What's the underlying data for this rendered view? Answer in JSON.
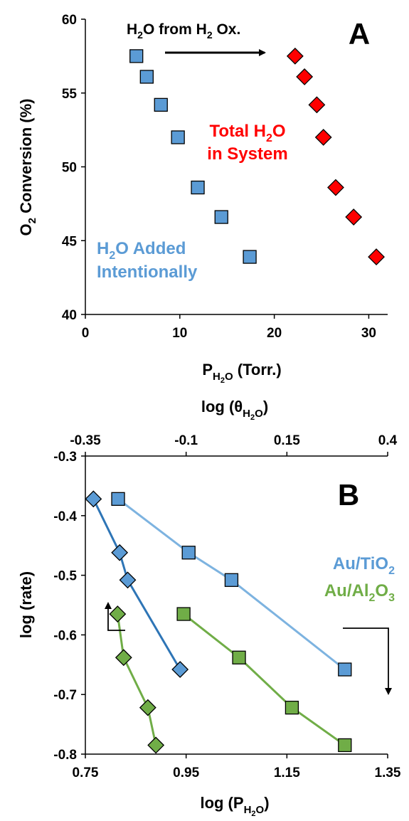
{
  "chart_data": [
    {
      "type": "scatter",
      "panel_label": "A",
      "ylabel_main": "O",
      "ylabel_sub": "2",
      "ylabel_rest": " Conversion (%)",
      "xlabel_main": "P",
      "xlabel_sub": "H",
      "xlabel_subsub": "2",
      "xlabel_subrest": "O",
      "xlabel_rest": " (Torr.)",
      "xlim": [
        0,
        32
      ],
      "ylim": [
        40,
        60
      ],
      "x_ticks": [
        0,
        10,
        20,
        30
      ],
      "y_ticks": [
        40,
        45,
        50,
        55,
        60
      ],
      "annotations": {
        "arrow_label": [
          "H",
          "2",
          "O from H",
          "2",
          " Ox."
        ],
        "red_label": [
          "Total H",
          "2",
          "O",
          "in System"
        ],
        "blue_label": [
          "H",
          "2",
          "O Added",
          "Intentionally"
        ]
      },
      "series": [
        {
          "color": "#5b9bd5",
          "marker": "square",
          "x": [
            5.4,
            6.5,
            8.0,
            9.8,
            11.9,
            14.4,
            17.4
          ],
          "y": [
            57.5,
            56.1,
            54.2,
            52.0,
            48.6,
            46.6,
            43.9
          ]
        },
        {
          "color": "#ff0000",
          "marker": "diamond",
          "x": [
            22.2,
            23.2,
            24.5,
            25.2,
            26.5,
            28.4,
            30.8
          ],
          "y": [
            57.5,
            56.1,
            54.2,
            52.0,
            48.6,
            46.6,
            43.9
          ]
        }
      ]
    },
    {
      "type": "line",
      "panel_label": "B",
      "ylabel": "log (rate)",
      "xlabel_main": "log (P",
      "xlabel_sub": "H",
      "xlabel_subsub": "2",
      "xlabel_subrest": "O",
      "xlabel_rest": ")",
      "top_xlabel_main": "log (θ",
      "top_xlabel_sub": "H",
      "top_xlabel_subsub": "2",
      "top_xlabel_subrest": "O",
      "top_xlabel_rest": ")",
      "xlim": [
        0.75,
        1.35
      ],
      "ylim": [
        -0.8,
        -0.3
      ],
      "top_xlim": [
        -0.35,
        0.4
      ],
      "x_ticks": [
        0.75,
        0.95,
        1.15,
        1.35
      ],
      "y_ticks": [
        -0.8,
        -0.7,
        -0.6,
        -0.5,
        -0.4,
        -0.3
      ],
      "top_x_ticks": [
        -0.35,
        -0.1,
        0.15,
        0.4
      ],
      "legend": [
        {
          "main": "Au/TiO",
          "sub": "2",
          "rest": "",
          "color": "#5b9bd5"
        },
        {
          "main": "Au/Al",
          "sub": "2",
          "rest": "O",
          "sub2": "3",
          "color": "#70ad47"
        }
      ],
      "series": [
        {
          "label": "Au/TiO2 bottom axis",
          "axis": "bottom",
          "marker": "square",
          "color": "#5b9bd5",
          "line_color": "#7db3e0",
          "x": [
            0.815,
            0.955,
            1.04,
            1.265
          ],
          "y": [
            -0.372,
            -0.462,
            -0.508,
            -0.658
          ]
        },
        {
          "label": "Au/Al2O3 bottom axis",
          "axis": "bottom",
          "marker": "square",
          "color": "#70ad47",
          "line_color": "#70ad47",
          "x": [
            0.945,
            1.055,
            1.16,
            1.265
          ],
          "y": [
            -0.565,
            -0.638,
            -0.722,
            -0.785
          ]
        },
        {
          "label": "Au/TiO2 top axis",
          "axis": "top",
          "marker": "diamond",
          "color": "#5b9bd5",
          "line_color": "#2e75b6",
          "x": [
            -0.33,
            -0.265,
            -0.245,
            -0.115
          ],
          "y": [
            -0.372,
            -0.462,
            -0.508,
            -0.658
          ]
        },
        {
          "label": "Au/Al2O3 top axis",
          "axis": "top",
          "marker": "diamond",
          "color": "#70ad47",
          "line_color": "#70ad47",
          "x": [
            -0.27,
            -0.255,
            -0.195,
            -0.175
          ],
          "y": [
            -0.565,
            -0.638,
            -0.722,
            -0.785
          ]
        }
      ]
    }
  ]
}
